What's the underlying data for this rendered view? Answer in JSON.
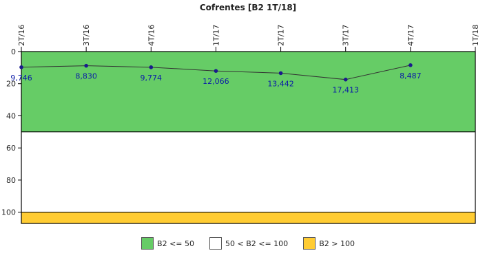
{
  "chart_data": {
    "type": "line",
    "title": "Cofrentes [B2 1T/18]",
    "categories": [
      "2T/16",
      "3T/16",
      "4T/16",
      "1T/17",
      "2T/17",
      "3T/17",
      "4T/17",
      "1T/18"
    ],
    "series": [
      {
        "values": [
          9.746,
          8.83,
          9.774,
          12.066,
          13.442,
          17.413,
          8.487,
          null
        ],
        "labels": [
          "9,746",
          "8,830",
          "9,774",
          "12,066",
          "13,442",
          "17,413",
          "8,487",
          ""
        ]
      }
    ],
    "y_ticks": [
      "0",
      "20",
      "40",
      "60",
      "80",
      "100"
    ],
    "y_tick_values": [
      0,
      20,
      40,
      60,
      80,
      100
    ],
    "ylim": [
      0,
      107
    ],
    "y_inverted": true,
    "bands": [
      {
        "from": 0,
        "to": 50,
        "color": "#66cc66",
        "label": "B2 <= 50"
      },
      {
        "from": 50,
        "to": 100,
        "color": "#ffffff",
        "label": "50 < B2 <= 100"
      },
      {
        "from": 100,
        "to": 107,
        "color": "#ffcc33",
        "label": "B2 > 100"
      }
    ],
    "line_color": "#333333",
    "point_color": "#1a1a8c",
    "legend_position": "bottom"
  }
}
